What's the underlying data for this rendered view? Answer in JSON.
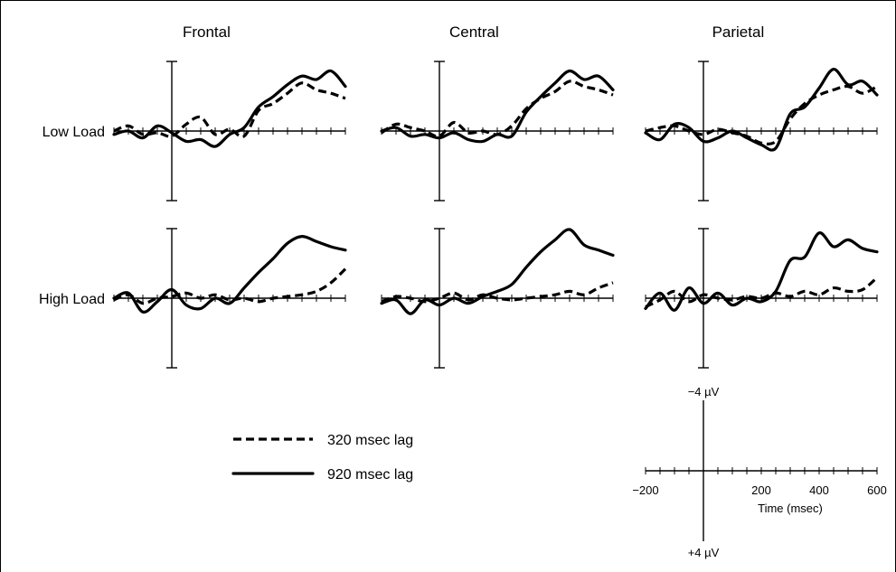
{
  "chart_data": {
    "type": "line",
    "columns": [
      "Frontal",
      "Central",
      "Parietal"
    ],
    "rows": [
      "Low Load",
      "High Load"
    ],
    "legend": [
      {
        "key": "lag320",
        "label": "320 msec lag",
        "style": "dashed"
      },
      {
        "key": "lag920",
        "label": "920 msec lag",
        "style": "solid"
      }
    ],
    "scale": {
      "x_ticks": [
        {
          "value": -200,
          "label": "−200"
        },
        {
          "value": 200,
          "label": "200"
        },
        {
          "value": 400,
          "label": "400"
        },
        {
          "value": 600,
          "label": "600"
        }
      ],
      "xlabel": "Time (msec)",
      "y_top_label": "−4 µV",
      "y_bottom_label": "+4 µV"
    },
    "xlim": [
      -200,
      600
    ],
    "ylim": [
      -4,
      4
    ],
    "negative_up": true,
    "x": [
      -200,
      -150,
      -100,
      -50,
      0,
      50,
      100,
      150,
      200,
      250,
      300,
      350,
      400,
      450,
      500,
      550,
      600
    ],
    "panels": [
      {
        "row": "Low Load",
        "column": "Frontal",
        "series": [
          {
            "name": "320 msec lag",
            "values": [
              0.0,
              -0.3,
              0.2,
              0.1,
              0.3,
              -0.4,
              -0.8,
              0.2,
              -0.1,
              0.3,
              -1.2,
              -1.6,
              -2.2,
              -2.8,
              -2.4,
              -2.2,
              -1.9
            ]
          },
          {
            "name": "920 msec lag",
            "values": [
              0.2,
              0.0,
              0.4,
              -0.3,
              0.1,
              0.6,
              0.5,
              0.9,
              0.2,
              -0.2,
              -1.4,
              -2.0,
              -2.7,
              -3.2,
              -3.0,
              -3.5,
              -2.6
            ]
          }
        ]
      },
      {
        "row": "Low Load",
        "column": "Central",
        "series": [
          {
            "name": "320 msec lag",
            "values": [
              0.1,
              -0.4,
              -0.2,
              0.0,
              0.3,
              -0.5,
              0.1,
              0.0,
              0.2,
              -0.3,
              -1.3,
              -1.9,
              -2.3,
              -2.9,
              -2.6,
              -2.4,
              -2.1
            ]
          },
          {
            "name": "920 msec lag",
            "values": [
              0.0,
              -0.2,
              0.3,
              0.2,
              0.4,
              0.1,
              0.5,
              0.6,
              0.2,
              0.3,
              -1.1,
              -2.0,
              -2.8,
              -3.5,
              -3.0,
              -3.2,
              -2.4
            ]
          }
        ]
      },
      {
        "row": "Low Load",
        "column": "Parietal",
        "series": [
          {
            "name": "320 msec lag",
            "values": [
              0.0,
              -0.2,
              -0.3,
              0.0,
              0.2,
              -0.1,
              0.1,
              0.3,
              0.7,
              0.6,
              -0.7,
              -1.6,
              -2.1,
              -2.4,
              -2.6,
              -2.2,
              -2.6
            ]
          },
          {
            "name": "920 msec lag",
            "values": [
              0.1,
              0.5,
              -0.4,
              -0.2,
              0.6,
              0.4,
              0.0,
              0.4,
              0.8,
              1.0,
              -1.0,
              -1.4,
              -2.5,
              -3.6,
              -2.7,
              -2.9,
              -2.1
            ]
          }
        ]
      },
      {
        "row": "High Load",
        "column": "Frontal",
        "series": [
          {
            "name": "320 msec lag",
            "values": [
              0.1,
              -0.2,
              0.3,
              0.0,
              -0.1,
              -0.3,
              0.0,
              -0.2,
              0.1,
              0.0,
              0.2,
              0.0,
              -0.1,
              -0.2,
              -0.4,
              -0.9,
              -1.7
            ]
          },
          {
            "name": "920 msec lag",
            "values": [
              0.0,
              -0.3,
              0.8,
              0.2,
              -0.5,
              0.4,
              0.6,
              0.0,
              0.3,
              -0.6,
              -1.5,
              -2.3,
              -3.2,
              -3.6,
              -3.3,
              -3.0,
              -2.8
            ]
          }
        ]
      },
      {
        "row": "High Load",
        "column": "Central",
        "series": [
          {
            "name": "320 msec lag",
            "values": [
              0.2,
              -0.1,
              0.0,
              0.2,
              0.0,
              -0.3,
              0.1,
              -0.2,
              0.0,
              0.1,
              0.0,
              -0.1,
              -0.2,
              -0.4,
              -0.2,
              -0.6,
              -0.9
            ]
          },
          {
            "name": "920 msec lag",
            "values": [
              0.3,
              0.1,
              0.9,
              0.1,
              0.4,
              0.0,
              0.3,
              -0.1,
              -0.4,
              -0.8,
              -1.8,
              -2.7,
              -3.4,
              -4.0,
              -3.1,
              -2.8,
              -2.5
            ]
          }
        ]
      },
      {
        "row": "High Load",
        "column": "Parietal",
        "series": [
          {
            "name": "320 msec lag",
            "values": [
              0.5,
              0.1,
              -0.4,
              0.2,
              -0.2,
              0.0,
              0.1,
              -0.1,
              0.0,
              -0.3,
              -0.1,
              -0.4,
              -0.2,
              -0.6,
              -0.4,
              -0.5,
              -1.2
            ]
          },
          {
            "name": "920 msec lag",
            "values": [
              0.6,
              -0.3,
              0.7,
              -0.6,
              0.3,
              -0.3,
              0.4,
              0.0,
              0.2,
              -0.4,
              -2.2,
              -2.4,
              -3.8,
              -3.0,
              -3.4,
              -2.9,
              -2.7
            ]
          }
        ]
      }
    ]
  }
}
